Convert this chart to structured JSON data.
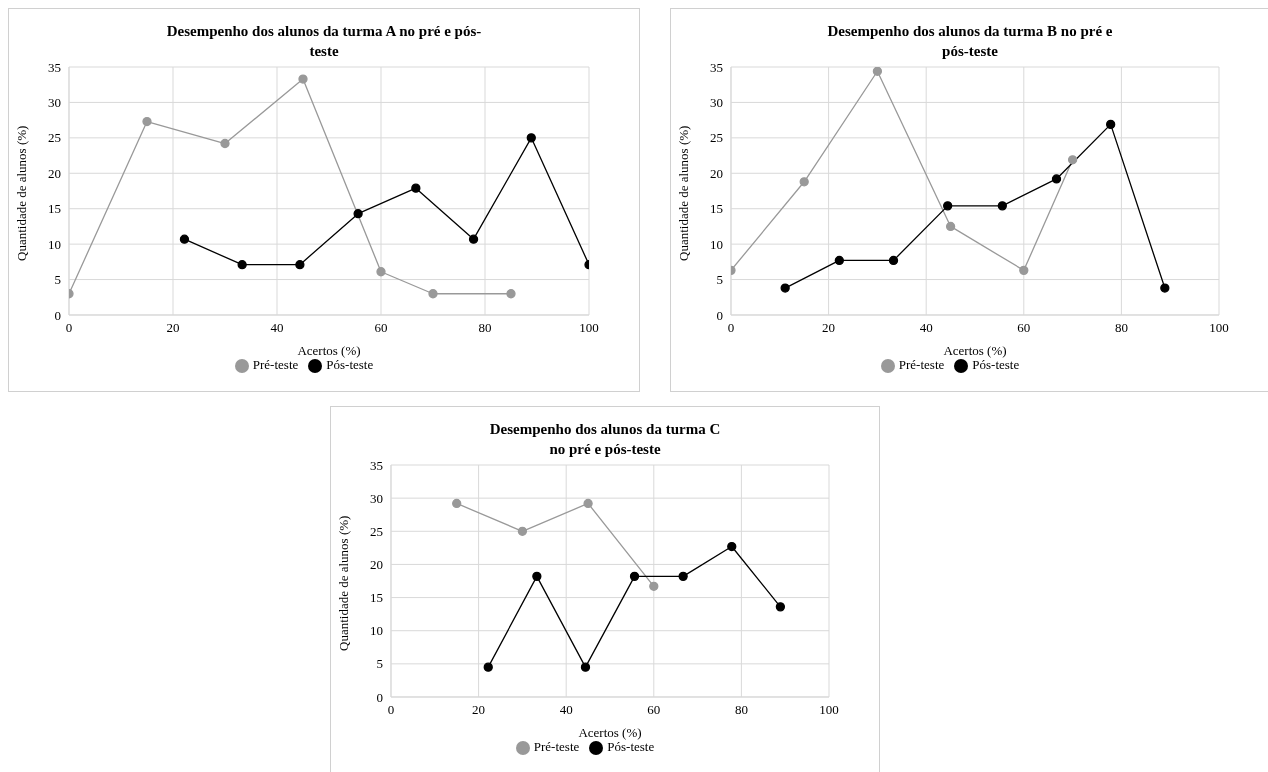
{
  "chart_data": [
    {
      "type": "line",
      "title": "Desempenho dos alunos da turma A no pré e pós-teste",
      "xlabel": "Acertos (%)",
      "ylabel": "Quantidade de alunos (%)",
      "xlim": [
        0,
        100
      ],
      "xticks": [
        0,
        20,
        40,
        60,
        80,
        100
      ],
      "ylim": [
        0,
        35
      ],
      "yticks": [
        0,
        5,
        10,
        15,
        20,
        25,
        30,
        35
      ],
      "grid": true,
      "legend": "bottom",
      "marker": "circle",
      "series": [
        {
          "name": "Pré-teste",
          "color": "#999999",
          "x": [
            0,
            15,
            30,
            45,
            60,
            70,
            85
          ],
          "values": [
            3,
            27.3,
            24.2,
            33.3,
            6.1,
            3,
            3
          ]
        },
        {
          "name": "Pós-teste",
          "color": "#000000",
          "x": [
            22.2,
            33.3,
            44.4,
            55.6,
            66.7,
            77.8,
            88.9,
            100
          ],
          "values": [
            10.7,
            7.1,
            7.1,
            14.3,
            17.9,
            10.7,
            25,
            7.1
          ]
        }
      ]
    },
    {
      "type": "line",
      "title": "Desempenho dos alunos da turma B no pré e pós-teste",
      "xlabel": "Acertos (%)",
      "ylabel": "Quantidade de alunos (%)",
      "xlim": [
        0,
        100
      ],
      "xticks": [
        0,
        20,
        40,
        60,
        80,
        100
      ],
      "ylim": [
        0,
        35
      ],
      "yticks": [
        0,
        5,
        10,
        15,
        20,
        25,
        30,
        35
      ],
      "grid": true,
      "legend": "bottom",
      "marker": "circle",
      "series": [
        {
          "name": "Pré-teste",
          "color": "#999999",
          "x": [
            0,
            15,
            30,
            45,
            60,
            70
          ],
          "values": [
            6.3,
            18.8,
            34.4,
            12.5,
            6.3,
            21.9
          ]
        },
        {
          "name": "Pós-teste",
          "color": "#000000",
          "x": [
            11.1,
            22.2,
            33.3,
            44.4,
            55.6,
            66.7,
            77.8,
            88.9
          ],
          "values": [
            3.8,
            7.7,
            7.7,
            15.4,
            15.4,
            19.2,
            26.9,
            3.8
          ]
        }
      ]
    },
    {
      "type": "line",
      "title": "Desempenho dos alunos da turma C no pré e pós-teste",
      "xlabel": "Acertos (%)",
      "ylabel": "Quantidade de alunos (%)",
      "xlim": [
        0,
        100
      ],
      "xticks": [
        0,
        20,
        40,
        60,
        80,
        100
      ],
      "ylim": [
        0,
        35
      ],
      "yticks": [
        0,
        5,
        10,
        15,
        20,
        25,
        30,
        35
      ],
      "grid": true,
      "legend": "bottom",
      "marker": "circle",
      "series": [
        {
          "name": "Pré-teste",
          "color": "#999999",
          "x": [
            15,
            30,
            45,
            60
          ],
          "values": [
            29.2,
            25,
            29.2,
            16.7
          ]
        },
        {
          "name": "Pós-teste",
          "color": "#000000",
          "x": [
            22.2,
            33.3,
            44.4,
            55.6,
            66.7,
            77.8,
            88.9
          ],
          "values": [
            4.5,
            18.2,
            4.5,
            18.2,
            18.2,
            22.7,
            13.6
          ]
        }
      ]
    }
  ]
}
